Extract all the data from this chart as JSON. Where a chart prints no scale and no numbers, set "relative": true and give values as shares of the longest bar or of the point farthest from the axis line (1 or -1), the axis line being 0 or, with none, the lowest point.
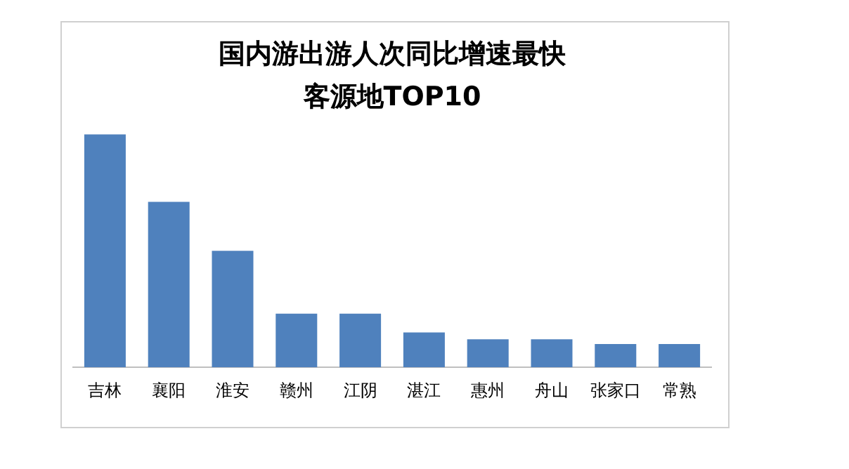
{
  "chart_data": {
    "type": "bar",
    "title": "国内游出游人次同比增速最快",
    "subtitle": "客源地TOP10",
    "categories": [
      "吉林",
      "襄阳",
      "淮安",
      "赣州",
      "江阴",
      "湛江",
      "惠州",
      "舟山",
      "张家口",
      "常熟"
    ],
    "values": [
      1,
      0.71,
      0.5,
      0.23,
      0.23,
      0.15,
      0.12,
      0.12,
      0.1,
      0.1
    ],
    "color": "#4f81bd",
    "relative": true,
    "grid": false,
    "legend": false
  }
}
